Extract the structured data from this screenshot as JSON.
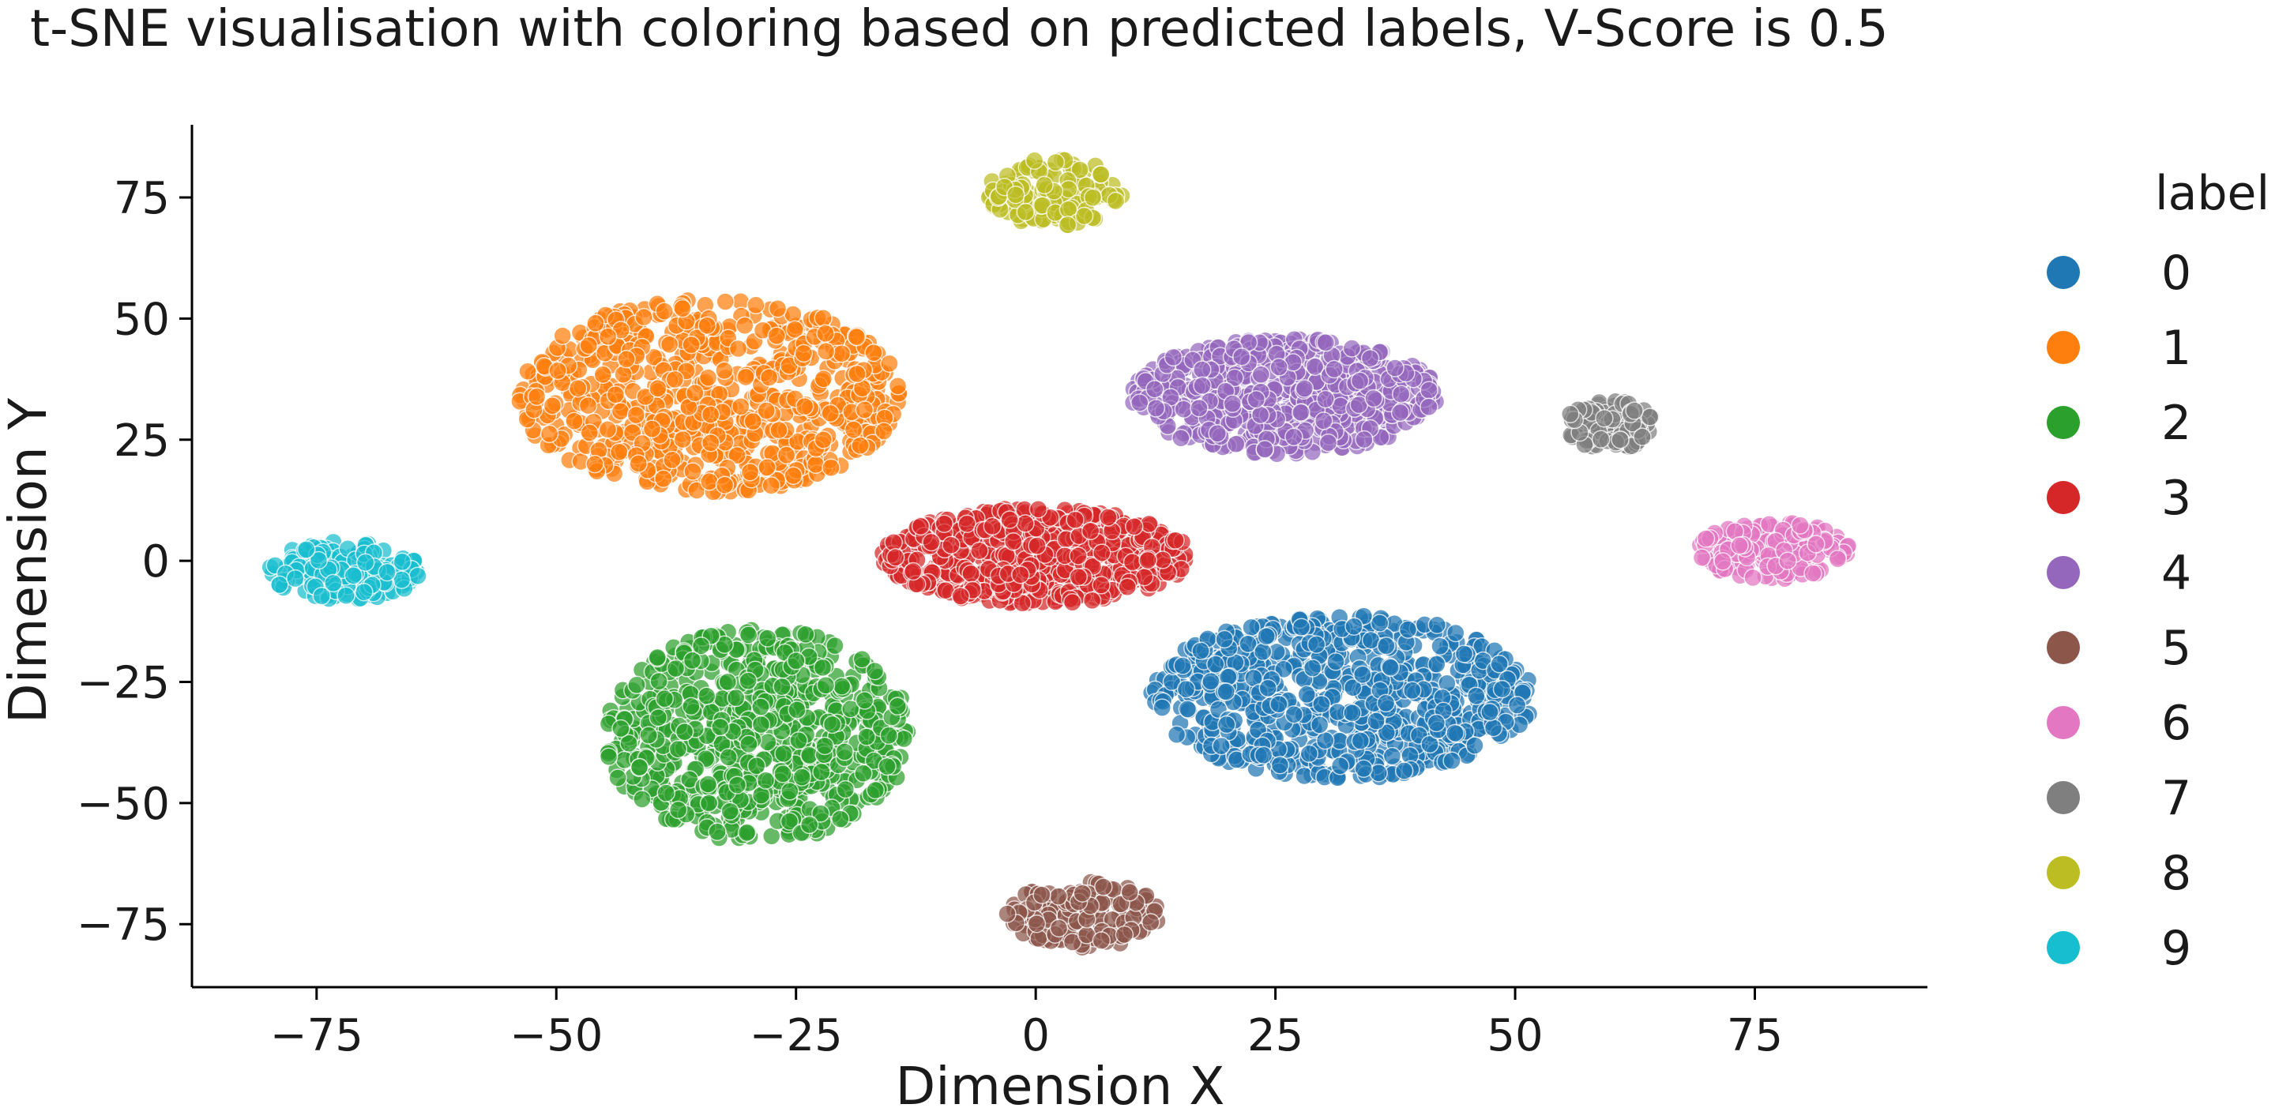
{
  "chart_data": {
    "type": "scatter",
    "title": "t-SNE visualisation with coloring based on predicted labels, V-Score is 0.5",
    "xlabel": "Dimension X",
    "ylabel": "Dimension Y",
    "xlim": [
      -88,
      93
    ],
    "ylim": [
      -88,
      90
    ],
    "xticks": [
      -75,
      -50,
      -25,
      0,
      25,
      50,
      75
    ],
    "yticks": [
      -75,
      -50,
      -25,
      0,
      25,
      50,
      75
    ],
    "grid": false,
    "legend": {
      "title": "label",
      "placement": "right"
    },
    "series": [
      {
        "name": "0",
        "color": "#1f77b4",
        "center": [
          32,
          -28
        ],
        "spread": [
          20,
          17
        ],
        "count": 700
      },
      {
        "name": "1",
        "color": "#ff7f0e",
        "center": [
          -34,
          34
        ],
        "spread": [
          20,
          20
        ],
        "count": 700
      },
      {
        "name": "2",
        "color": "#2ca02c",
        "center": [
          -29,
          -36
        ],
        "spread": [
          16,
          22
        ],
        "count": 680
      },
      {
        "name": "3",
        "color": "#d62728",
        "center": [
          0,
          1
        ],
        "spread": [
          16,
          10
        ],
        "count": 620
      },
      {
        "name": "4",
        "color": "#9467bd",
        "center": [
          26,
          34
        ],
        "spread": [
          16,
          12
        ],
        "count": 560
      },
      {
        "name": "5",
        "color": "#8c564b",
        "center": [
          5,
          -73
        ],
        "spread": [
          8,
          7
        ],
        "count": 170
      },
      {
        "name": "6",
        "color": "#e377c2",
        "center": [
          77,
          2
        ],
        "spread": [
          8,
          6
        ],
        "count": 170
      },
      {
        "name": "7",
        "color": "#7f7f7f",
        "center": [
          60,
          28
        ],
        "spread": [
          5,
          5
        ],
        "count": 90
      },
      {
        "name": "8",
        "color": "#bcbd22",
        "center": [
          2,
          76
        ],
        "spread": [
          7,
          7
        ],
        "count": 140
      },
      {
        "name": "9",
        "color": "#17becf",
        "center": [
          -72,
          -2
        ],
        "spread": [
          8,
          6
        ],
        "count": 160
      }
    ]
  }
}
